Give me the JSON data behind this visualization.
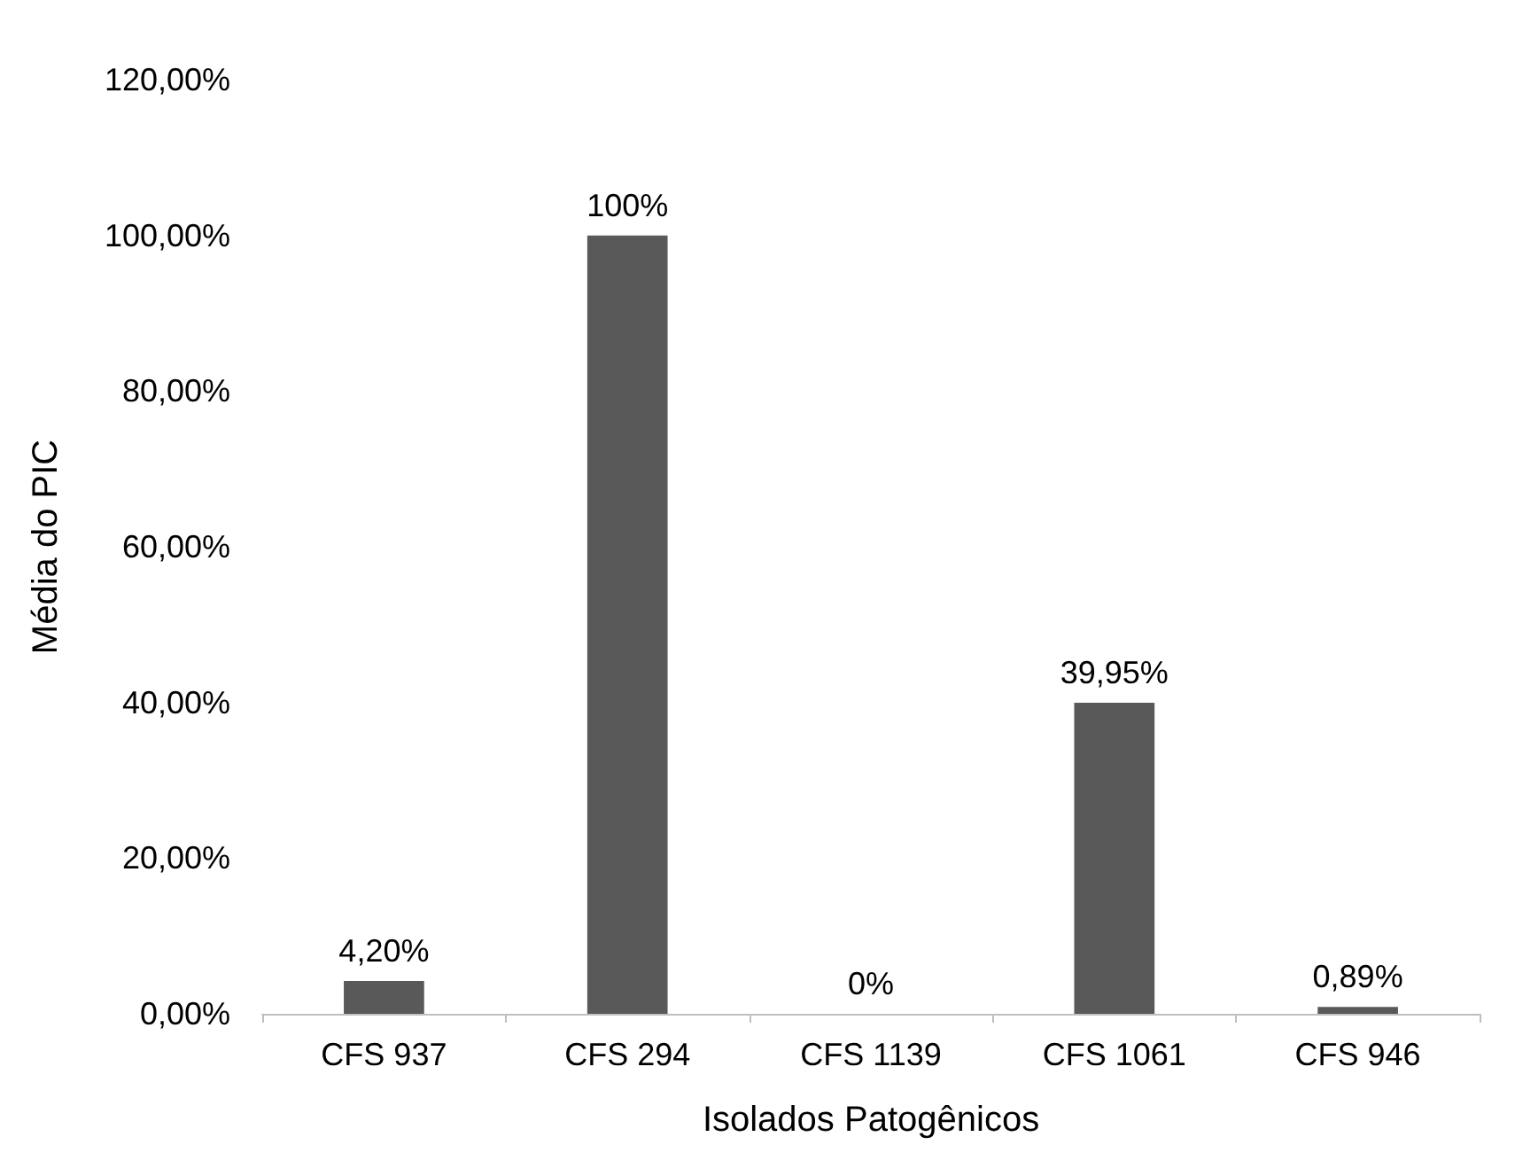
{
  "chart_data": {
    "type": "bar",
    "xlabel": "Isolados Patogênicos",
    "ylabel": "Média do PIC",
    "categories": [
      "CFS 937",
      "CFS 294",
      "CFS 1139",
      "CFS 1061",
      "CFS 946"
    ],
    "values": [
      4.2,
      100,
      0,
      39.95,
      0.89
    ],
    "value_labels": [
      "4,20%",
      "100%",
      "0%",
      "39,95%",
      "0,89%"
    ],
    "color": "#595959",
    "ylim": [
      0,
      120
    ],
    "yticks": [
      {
        "value": 0,
        "label": "0,00%"
      },
      {
        "value": 20,
        "label": "20,00%"
      },
      {
        "value": 40,
        "label": "40,00%"
      },
      {
        "value": 60,
        "label": "60,00%"
      },
      {
        "value": 80,
        "label": "80,00%"
      },
      {
        "value": 100,
        "label": "100,00%"
      },
      {
        "value": 120,
        "label": "120,00%"
      }
    ],
    "grid": false
  }
}
